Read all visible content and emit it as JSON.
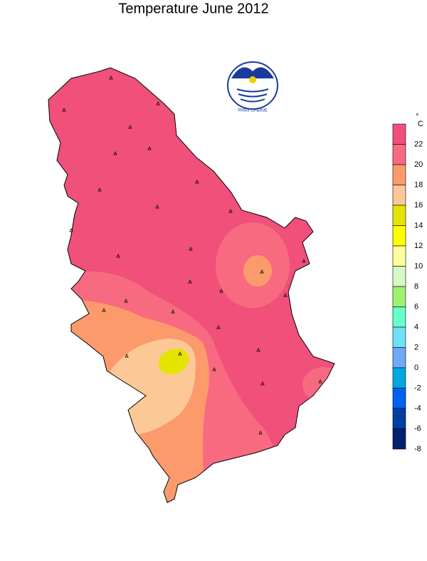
{
  "title": "Temperature June 2012",
  "logo_text": "РХМЗ СРБИЈЕ",
  "legend": {
    "unit_symbol": "°",
    "unit_letter": "C",
    "levels": [
      22,
      20,
      18,
      16,
      14,
      12,
      10,
      8,
      6,
      4,
      2,
      0,
      -2,
      -4,
      -6,
      -8
    ],
    "colors": [
      "#f0507a",
      "#f86a80",
      "#fc9a6c",
      "#fcc896",
      "#e4e400",
      "#ffff00",
      "#ffff9c",
      "#d8f8c8",
      "#a0f070",
      "#66ffcc",
      "#70e0f8",
      "#70a8f8",
      "#00a8e0",
      "#0060f0",
      "#0040a0",
      "#002070"
    ]
  }
}
